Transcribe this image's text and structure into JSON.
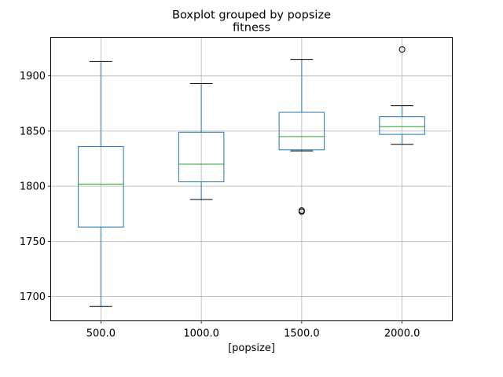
{
  "suptitle": "Boxplot grouped by popsize",
  "chart_data": {
    "type": "boxplot",
    "title": "fitness",
    "xlabel": "[popsize]",
    "ylabel": "",
    "categories": [
      "500.0",
      "1000.0",
      "1500.0",
      "2000.0"
    ],
    "ylim": [
      1678,
      1935
    ],
    "yticks": [
      1700,
      1750,
      1800,
      1850,
      1900
    ],
    "grid": true,
    "boxes": [
      {
        "whisker_low": 1691,
        "q1": 1763,
        "median": 1802,
        "q3": 1836,
        "whisker_high": 1913,
        "outliers": []
      },
      {
        "whisker_low": 1788,
        "q1": 1804,
        "median": 1820,
        "q3": 1849,
        "whisker_high": 1893,
        "outliers": []
      },
      {
        "whisker_low": 1832,
        "q1": 1833,
        "median": 1845,
        "q3": 1867,
        "whisker_high": 1915,
        "outliers": [
          1778,
          1777
        ]
      },
      {
        "whisker_low": 1838,
        "q1": 1847,
        "median": 1854,
        "q3": 1863,
        "whisker_high": 1873,
        "outliers": [
          1924
        ]
      }
    ],
    "colors": {
      "box": "#1f77b4",
      "median": "#2ca02c",
      "grid": "#b0b0b0",
      "whisker": "#000000"
    }
  }
}
